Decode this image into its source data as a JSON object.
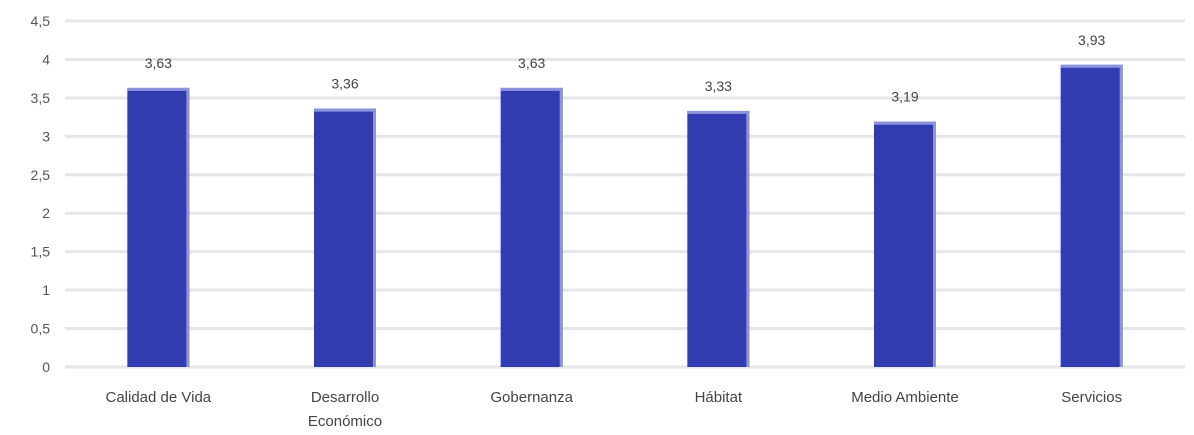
{
  "chart_data": {
    "type": "bar",
    "categories": [
      "Calidad de Vida",
      "Desarrollo Económico",
      "Gobernanza",
      "Hábitat",
      "Medio Ambiente",
      "Servicios"
    ],
    "category_lines": [
      [
        "Calidad de Vida"
      ],
      [
        "Desarrollo",
        "Económico"
      ],
      [
        "Gobernanza"
      ],
      [
        "Hábitat"
      ],
      [
        "Medio Ambiente"
      ],
      [
        "Servicios"
      ]
    ],
    "values": [
      3.63,
      3.36,
      3.63,
      3.33,
      3.19,
      3.93
    ],
    "data_labels": [
      "3,63",
      "3,36",
      "3,63",
      "3,33",
      "3,19",
      "3,93"
    ],
    "y_ticks": [
      0,
      0.5,
      1,
      1.5,
      2,
      2.5,
      3,
      3.5,
      4,
      4.5
    ],
    "y_tick_labels": [
      "0",
      "0,5",
      "1",
      "1,5",
      "2",
      "2,5",
      "3",
      "3,5",
      "4",
      "4,5"
    ],
    "ylim": [
      0,
      4.5
    ],
    "title": "",
    "xlabel": "",
    "ylabel": "",
    "grid": true,
    "legend": "none",
    "colors": {
      "bar": "#313cb0",
      "bar_highlight": "#8d92dc",
      "grid": "#e6e6e6"
    }
  }
}
